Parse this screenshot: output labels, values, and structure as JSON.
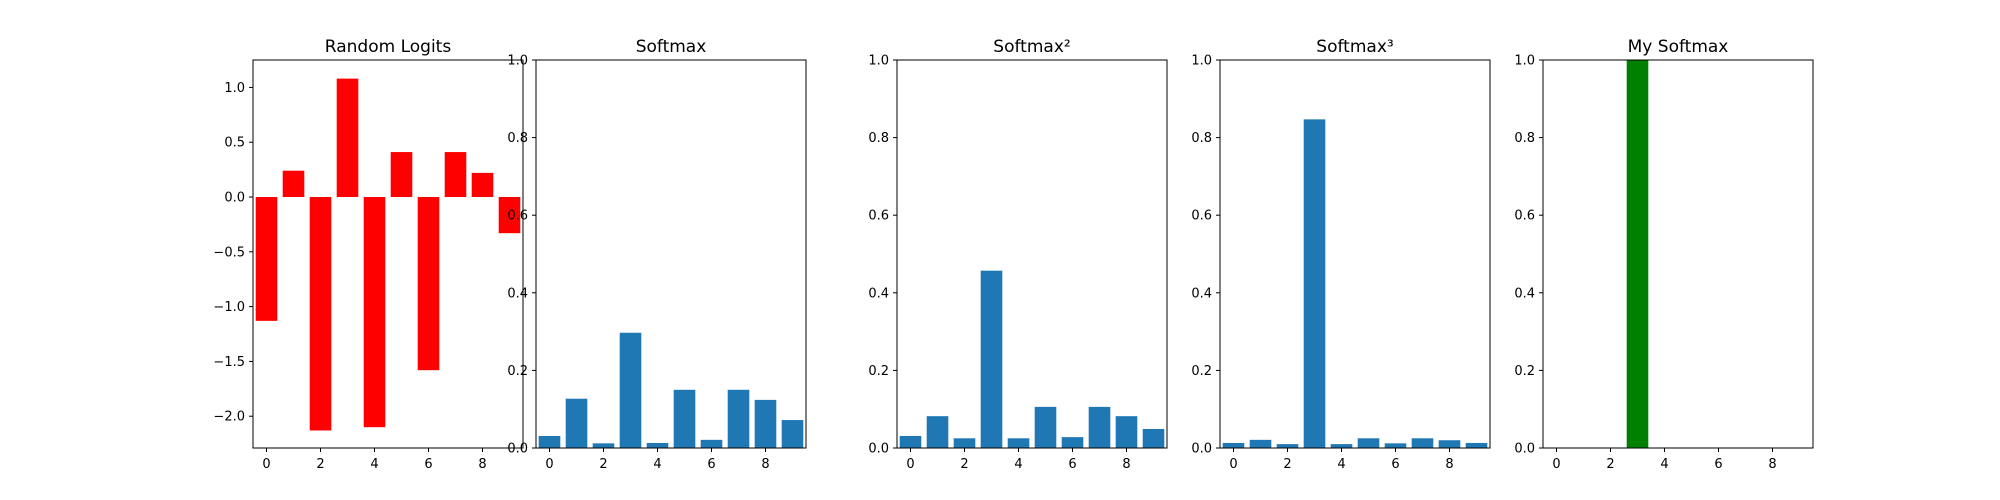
{
  "chart_data": [
    {
      "type": "bar",
      "title": "Random Logits",
      "xlabel": "",
      "ylabel": "",
      "color": "#ff0000",
      "categories": [
        0,
        1,
        2,
        3,
        4,
        5,
        6,
        7,
        8,
        9
      ],
      "values": [
        -1.13,
        0.24,
        -2.13,
        1.08,
        -2.1,
        0.41,
        -1.58,
        0.41,
        0.22,
        -0.33
      ],
      "ylim": [
        -2.29,
        1.25
      ],
      "xlim": [
        -0.5,
        9.5
      ],
      "yticks": [
        -2.0,
        -1.5,
        -1.0,
        -0.5,
        0.0,
        0.5,
        1.0
      ],
      "ytick_labels": [
        "−2.0",
        "−1.5",
        "−1.0",
        "−0.5",
        "0.0",
        "0.5",
        "1.0"
      ],
      "xticks": [
        0,
        2,
        4,
        6,
        8
      ],
      "xtick_labels": [
        "0",
        "2",
        "4",
        "6",
        "8"
      ],
      "grid": false
    },
    {
      "type": "bar",
      "title": "Softmax",
      "xlabel": "",
      "ylabel": "",
      "color": "#1f77b4",
      "categories": [
        0,
        1,
        2,
        3,
        4,
        5,
        6,
        7,
        8,
        9
      ],
      "values": [
        0.031,
        0.127,
        0.012,
        0.297,
        0.013,
        0.15,
        0.021,
        0.15,
        0.124,
        0.072
      ],
      "ylim": [
        0,
        1
      ],
      "xlim": [
        -0.5,
        9.5
      ],
      "yticks": [
        0,
        0.2,
        0.4,
        0.6,
        0.8,
        1.0
      ],
      "ytick_labels": [
        "0.0",
        "0.2",
        "0.4",
        "0.6",
        "0.8",
        "1.0"
      ],
      "xticks": [
        0,
        2,
        4,
        6,
        8
      ],
      "xtick_labels": [
        "0",
        "2",
        "4",
        "6",
        "8"
      ],
      "grid": false
    },
    {
      "type": "bar",
      "title": "Softmax²",
      "xlabel": "",
      "ylabel": "",
      "color": "#1f77b4",
      "categories": [
        0,
        1,
        2,
        3,
        4,
        5,
        6,
        7,
        8,
        9
      ],
      "values": [
        0.031,
        0.082,
        0.025,
        0.457,
        0.025,
        0.106,
        0.028,
        0.106,
        0.082,
        0.049
      ],
      "ylim": [
        0,
        1
      ],
      "xlim": [
        -0.5,
        9.5
      ],
      "yticks": [
        0,
        0.2,
        0.4,
        0.6,
        0.8,
        1.0
      ],
      "ytick_labels": [
        "0.0",
        "0.2",
        "0.4",
        "0.6",
        "0.8",
        "1.0"
      ],
      "xticks": [
        0,
        2,
        4,
        6,
        8
      ],
      "xtick_labels": [
        "0",
        "2",
        "4",
        "6",
        "8"
      ],
      "grid": false
    },
    {
      "type": "bar",
      "title": "Softmax³",
      "xlabel": "",
      "ylabel": "",
      "color": "#1f77b4",
      "categories": [
        0,
        1,
        2,
        3,
        4,
        5,
        6,
        7,
        8,
        9
      ],
      "values": [
        0.013,
        0.021,
        0.01,
        0.847,
        0.01,
        0.025,
        0.012,
        0.025,
        0.02,
        0.013
      ],
      "ylim": [
        0,
        1
      ],
      "xlim": [
        -0.5,
        9.5
      ],
      "yticks": [
        0,
        0.2,
        0.4,
        0.6,
        0.8,
        1.0
      ],
      "ytick_labels": [
        "0.0",
        "0.2",
        "0.4",
        "0.6",
        "0.8",
        "1.0"
      ],
      "xticks": [
        0,
        2,
        4,
        6,
        8
      ],
      "xtick_labels": [
        "0",
        "2",
        "4",
        "6",
        "8"
      ],
      "grid": false
    },
    {
      "type": "bar",
      "title": "My Softmax",
      "xlabel": "",
      "ylabel": "",
      "color": "#008000",
      "categories": [
        0,
        1,
        2,
        3,
        4,
        5,
        6,
        7,
        8,
        9
      ],
      "values": [
        0,
        0,
        0,
        1.0,
        0,
        0,
        0,
        0,
        0,
        0
      ],
      "ylim": [
        0,
        1
      ],
      "xlim": [
        -0.5,
        9.5
      ],
      "yticks": [
        0,
        0.2,
        0.4,
        0.6,
        0.8,
        1.0
      ],
      "ytick_labels": [
        "0.0",
        "0.2",
        "0.4",
        "0.6",
        "0.8",
        "1.0"
      ],
      "xticks": [
        0,
        2,
        4,
        6,
        8
      ],
      "xtick_labels": [
        "0",
        "2",
        "4",
        "6",
        "8"
      ],
      "grid": false
    }
  ]
}
